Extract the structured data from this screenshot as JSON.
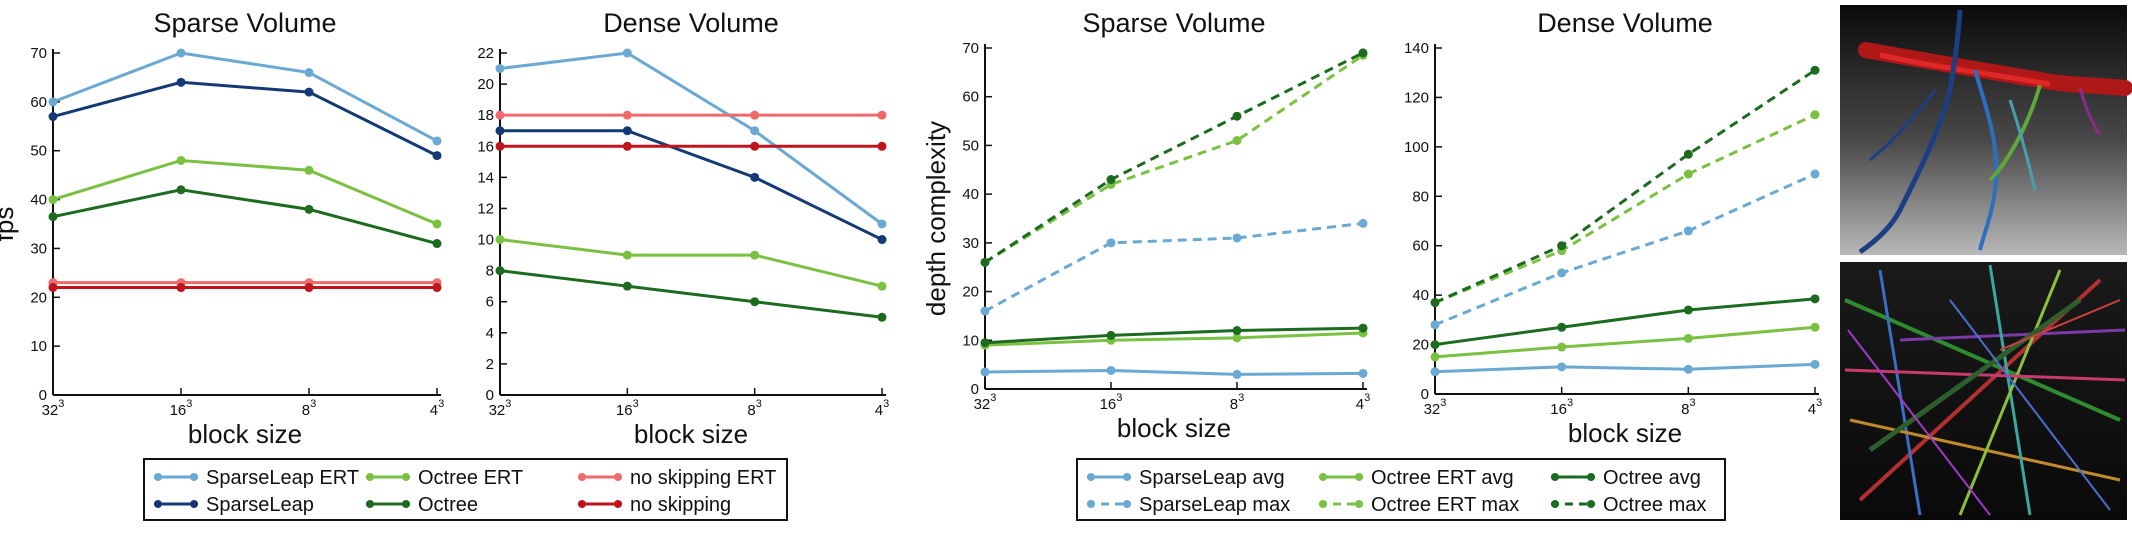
{
  "colors": {
    "sparseleap_ert": "#6aa9d3",
    "sparseleap": "#133a75",
    "octree_ert": "#7ac142",
    "octree": "#1c6b20",
    "noskip_ert": "#ef6a6a",
    "noskip": "#c0141c"
  },
  "legend_left": [
    {
      "label": "SparseLeap ERT",
      "color": "#6aa9d3",
      "dashed": false
    },
    {
      "label": "SparseLeap",
      "color": "#133a75",
      "dashed": false
    },
    {
      "label": "Octree ERT",
      "color": "#7ac142",
      "dashed": false
    },
    {
      "label": "Octree",
      "color": "#1c6b20",
      "dashed": false
    },
    {
      "label": "no skipping ERT",
      "color": "#ef6a6a",
      "dashed": false
    },
    {
      "label": "no skipping",
      "color": "#c0141c",
      "dashed": false
    }
  ],
  "legend_right": [
    {
      "label": "SparseLeap avg",
      "color": "#6aa9d3",
      "dashed": false
    },
    {
      "label": "SparseLeap max",
      "color": "#6aa9d3",
      "dashed": true
    },
    {
      "label": "Octree ERT avg",
      "color": "#7ac142",
      "dashed": false
    },
    {
      "label": "Octree ERT max",
      "color": "#7ac142",
      "dashed": true
    },
    {
      "label": "Octree avg",
      "color": "#1c6b20",
      "dashed": false
    },
    {
      "label": "Octree max",
      "color": "#1c6b20",
      "dashed": true
    }
  ],
  "images": [
    {
      "name": "sparse-volume-render-image",
      "description_icon": "volume-render-icon"
    },
    {
      "name": "dense-volume-render-image",
      "description_icon": "volume-render-icon"
    }
  ],
  "chart_data": [
    {
      "type": "line",
      "title": "Sparse Volume",
      "xlabel": "block size",
      "ylabel": "fps",
      "categories": [
        "32",
        "16",
        "8",
        "4"
      ],
      "category_exponent": "3",
      "ylim": [
        0,
        70
      ],
      "yticks": [
        0,
        10,
        20,
        30,
        40,
        50,
        60,
        70
      ],
      "series": [
        {
          "name": "SparseLeap ERT",
          "color": "#6aa9d3",
          "dashed": false,
          "values": [
            60,
            70,
            66,
            52
          ]
        },
        {
          "name": "SparseLeap",
          "color": "#133a75",
          "dashed": false,
          "values": [
            57,
            64,
            62,
            49
          ]
        },
        {
          "name": "Octree ERT",
          "color": "#7ac142",
          "dashed": false,
          "values": [
            40,
            48,
            46,
            35
          ]
        },
        {
          "name": "Octree",
          "color": "#1c6b20",
          "dashed": false,
          "values": [
            36.5,
            42,
            38,
            31
          ]
        },
        {
          "name": "no skipping ERT",
          "color": "#ef6a6a",
          "dashed": false,
          "values": [
            23,
            23,
            23,
            23
          ]
        },
        {
          "name": "no skipping",
          "color": "#c0141c",
          "dashed": false,
          "values": [
            22,
            22,
            22,
            22
          ]
        }
      ]
    },
    {
      "type": "line",
      "title": "Dense Volume",
      "xlabel": "block size",
      "ylabel": "",
      "categories": [
        "32",
        "16",
        "8",
        "4"
      ],
      "category_exponent": "3",
      "ylim": [
        0,
        22
      ],
      "yticks": [
        0,
        2,
        4,
        6,
        8,
        10,
        12,
        14,
        16,
        18,
        20,
        22
      ],
      "series": [
        {
          "name": "SparseLeap ERT",
          "color": "#6aa9d3",
          "dashed": false,
          "values": [
            21,
            22,
            17,
            11
          ]
        },
        {
          "name": "SparseLeap",
          "color": "#133a75",
          "dashed": false,
          "values": [
            17,
            17,
            14,
            10
          ]
        },
        {
          "name": "Octree ERT",
          "color": "#7ac142",
          "dashed": false,
          "values": [
            10,
            9,
            9,
            7
          ]
        },
        {
          "name": "Octree",
          "color": "#1c6b20",
          "dashed": false,
          "values": [
            8,
            7,
            6,
            5
          ]
        },
        {
          "name": "no skipping ERT",
          "color": "#ef6a6a",
          "dashed": false,
          "values": [
            18,
            18,
            18,
            18
          ]
        },
        {
          "name": "no skipping",
          "color": "#c0141c",
          "dashed": false,
          "values": [
            16,
            16,
            16,
            16
          ]
        }
      ]
    },
    {
      "type": "line",
      "title": "Sparse Volume",
      "xlabel": "block size",
      "ylabel": "depth complexity",
      "categories": [
        "32",
        "16",
        "8",
        "4"
      ],
      "category_exponent": "3",
      "ylim": [
        0,
        70
      ],
      "yticks": [
        0,
        10,
        20,
        30,
        40,
        50,
        60,
        70
      ],
      "series": [
        {
          "name": "SparseLeap avg",
          "color": "#6aa9d3",
          "dashed": false,
          "values": [
            3.5,
            3.8,
            3,
            3.2
          ]
        },
        {
          "name": "SparseLeap max",
          "color": "#6aa9d3",
          "dashed": true,
          "values": [
            16,
            30,
            31,
            34
          ]
        },
        {
          "name": "Octree ERT avg",
          "color": "#7ac142",
          "dashed": false,
          "values": [
            9,
            10,
            10.5,
            11.5
          ]
        },
        {
          "name": "Octree ERT max",
          "color": "#7ac142",
          "dashed": true,
          "values": [
            26,
            42,
            51,
            68.5
          ]
        },
        {
          "name": "Octree avg",
          "color": "#1c6b20",
          "dashed": false,
          "values": [
            9.5,
            11,
            12,
            12.5
          ]
        },
        {
          "name": "Octree max",
          "color": "#1c6b20",
          "dashed": true,
          "values": [
            26,
            43,
            56,
            69
          ]
        }
      ]
    },
    {
      "type": "line",
      "title": "Dense Volume",
      "xlabel": "block size",
      "ylabel": "",
      "categories": [
        "32",
        "16",
        "8",
        "4"
      ],
      "category_exponent": "3",
      "ylim": [
        0,
        140
      ],
      "yticks": [
        0,
        20,
        40,
        60,
        80,
        100,
        120,
        140
      ],
      "series": [
        {
          "name": "SparseLeap avg",
          "color": "#6aa9d3",
          "dashed": false,
          "values": [
            9,
            11,
            10,
            12
          ]
        },
        {
          "name": "SparseLeap max",
          "color": "#6aa9d3",
          "dashed": true,
          "values": [
            28,
            49,
            66,
            89
          ]
        },
        {
          "name": "Octree ERT avg",
          "color": "#7ac142",
          "dashed": false,
          "values": [
            15,
            19,
            22.5,
            27
          ]
        },
        {
          "name": "Octree ERT max",
          "color": "#7ac142",
          "dashed": true,
          "values": [
            37,
            58,
            89,
            113
          ]
        },
        {
          "name": "Octree avg",
          "color": "#1c6b20",
          "dashed": false,
          "values": [
            20,
            27,
            34,
            38.5
          ]
        },
        {
          "name": "Octree max",
          "color": "#1c6b20",
          "dashed": true,
          "values": [
            37,
            60,
            97,
            131
          ]
        }
      ]
    }
  ]
}
